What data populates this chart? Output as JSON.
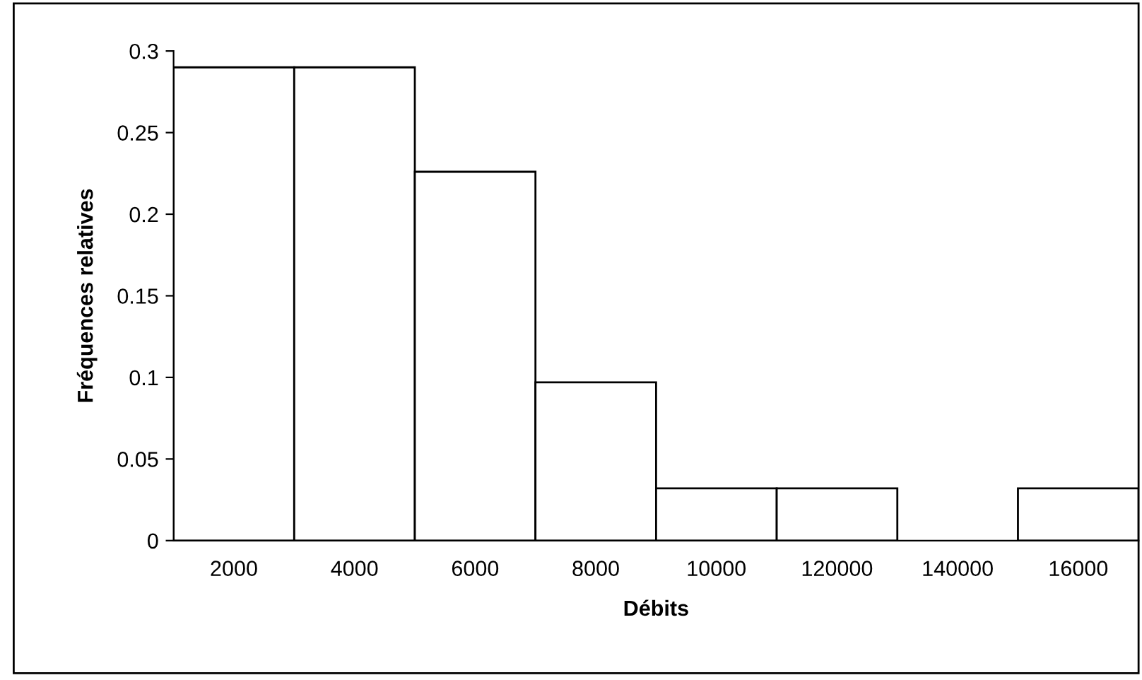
{
  "chart_data": {
    "type": "bar",
    "xlabel": "Débits",
    "ylabel": "Fréquences relatives",
    "categories": [
      "2000",
      "4000",
      "6000",
      "8000",
      "10000",
      "120000",
      "140000",
      "16000"
    ],
    "values": [
      0.29,
      0.29,
      0.226,
      0.097,
      0.032,
      0.032,
      0,
      0.032
    ],
    "color": "#ffffff",
    "ylim": [
      0,
      0.3
    ],
    "yticks": [
      {
        "value": 0,
        "label": "0"
      },
      {
        "value": 0.05,
        "label": "0.05"
      },
      {
        "value": 0.1,
        "label": "0.1"
      },
      {
        "value": 0.15,
        "label": "0.15"
      },
      {
        "value": 0.2,
        "label": "0.2"
      },
      {
        "value": 0.25,
        "label": "0.25"
      },
      {
        "value": 0.3,
        "label": "0.3"
      }
    ],
    "grid": false,
    "legend": false
  }
}
